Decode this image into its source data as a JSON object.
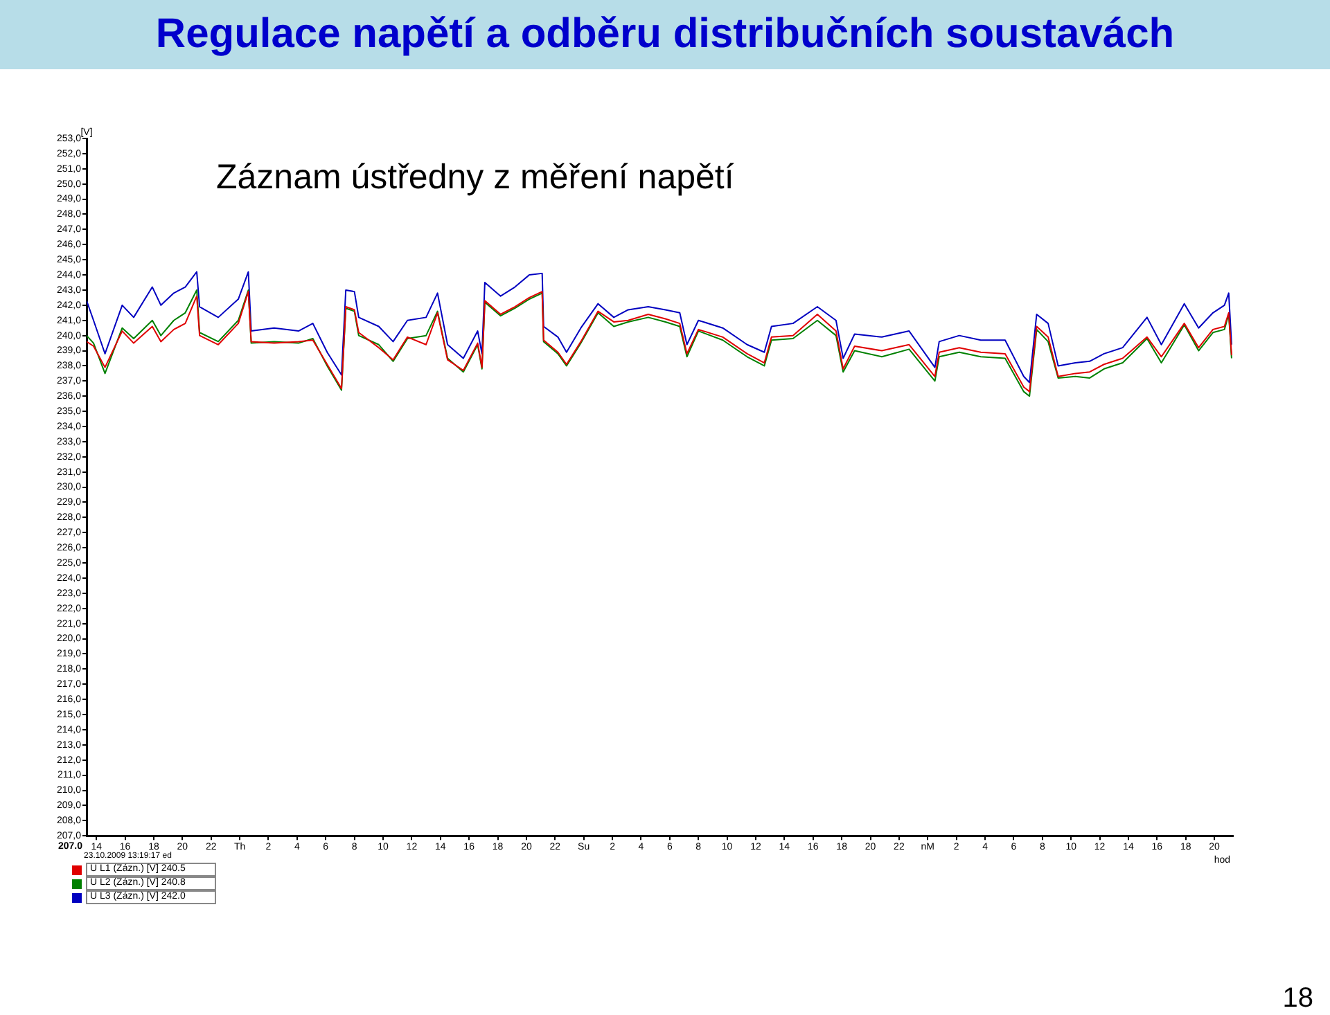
{
  "chart_data": {
    "type": "line",
    "title": "Regulace napětí a odběru distribučních soustavách",
    "subtitle": "Záznam ústředny z měření napětí",
    "xlabel": "hod",
    "ylabel": "[V]",
    "annotations": [
      "207.0",
      "23.10.2009 13:19:17 ed",
      "18"
    ],
    "x": [
      "2009-10-23T13:19",
      "2009-10-23T13:48",
      "2009-10-23T14:36",
      "2009-10-23T15:48",
      "2009-10-23T16:36",
      "2009-10-23T17:54",
      "2009-10-23T18:30",
      "2009-10-23T19:24",
      "2009-10-23T20:12",
      "2009-10-23T21:00",
      "2009-10-23T21:12",
      "2009-10-23T22:30",
      "2009-10-23T23:54",
      "2009-10-24T00:36",
      "2009-10-24T00:48",
      "2009-10-24T02:24",
      "2009-10-24T04:06",
      "2009-10-24T05:06",
      "2009-10-24T06:06",
      "2009-10-24T07:06",
      "2009-10-24T07:24",
      "2009-10-24T08:00",
      "2009-10-24T08:18",
      "2009-10-24T09:42",
      "2009-10-24T10:42",
      "2009-10-24T11:42",
      "2009-10-24T13:00",
      "2009-10-24T13:48",
      "2009-10-24T14:30",
      "2009-10-24T15:36",
      "2009-10-24T16:36",
      "2009-10-24T16:54",
      "2009-10-24T17:06",
      "2009-10-24T18:12",
      "2009-10-24T19:12",
      "2009-10-24T20:12",
      "2009-10-24T21:06",
      "2009-10-24T21:12",
      "2009-10-24T22:12",
      "2009-10-24T22:48",
      "2009-10-24T23:48",
      "2009-10-25T01:00",
      "2009-10-25T02:06",
      "2009-10-25T03:06",
      "2009-10-25T04:30",
      "2009-10-25T05:42",
      "2009-10-25T06:42",
      "2009-10-25T07:12",
      "2009-10-25T08:00",
      "2009-10-25T09:42",
      "2009-10-25T11:24",
      "2009-10-25T12:36",
      "2009-10-25T13:06",
      "2009-10-25T14:36",
      "2009-10-25T16:18",
      "2009-10-25T17:36",
      "2009-10-25T18:06",
      "2009-10-25T18:54",
      "2009-10-25T20:48",
      "2009-10-25T22:42",
      "2009-10-26T00:30",
      "2009-10-26T00:48",
      "2009-10-26T02:12",
      "2009-10-26T03:42",
      "2009-10-26T05:24",
      "2009-10-26T06:42",
      "2009-10-26T07:06",
      "2009-10-26T07:36",
      "2009-10-26T08:24",
      "2009-10-26T09:06",
      "2009-10-26T10:18",
      "2009-10-26T11:18",
      "2009-10-26T12:18",
      "2009-10-26T13:36",
      "2009-10-26T15:18",
      "2009-10-26T16:18",
      "2009-10-26T17:54",
      "2009-10-26T18:54",
      "2009-10-26T19:54",
      "2009-10-26T20:42",
      "2009-10-26T21:00",
      "2009-10-26T21:12"
    ],
    "series": [
      {
        "name": "U L1 (Zázn.) [V] 240.5",
        "color": "#e00000",
        "values": [
          239.6,
          239.3,
          237.9,
          240.3,
          239.5,
          240.6,
          239.6,
          240.4,
          240.8,
          242.6,
          240.0,
          239.4,
          240.8,
          242.9,
          239.6,
          239.5,
          239.6,
          239.7,
          238.1,
          236.5,
          241.9,
          241.7,
          240.2,
          239.2,
          238.4,
          239.9,
          239.4,
          241.5,
          238.4,
          237.7,
          239.5,
          237.9,
          242.3,
          241.4,
          241.9,
          242.5,
          242.9,
          239.7,
          238.9,
          238.1,
          239.6,
          241.6,
          240.9,
          241.0,
          241.4,
          241.1,
          240.8,
          238.8,
          240.4,
          239.9,
          238.8,
          238.2,
          239.9,
          240.0,
          241.4,
          240.3,
          237.8,
          239.3,
          239.0,
          239.4,
          237.3,
          238.9,
          239.2,
          238.9,
          238.8,
          236.6,
          236.3,
          240.6,
          239.9,
          237.3,
          237.5,
          237.6,
          238.1,
          238.5,
          239.9,
          238.6,
          240.8,
          239.2,
          240.4,
          240.6,
          241.5,
          238.7
        ]
      },
      {
        "name": "U L2 (Zázn.) [V] 240.8",
        "color": "#008000",
        "values": [
          240.0,
          239.5,
          237.5,
          240.5,
          239.8,
          241.0,
          240.0,
          241.0,
          241.5,
          243.0,
          240.2,
          239.6,
          241.0,
          243.0,
          239.5,
          239.6,
          239.5,
          239.8,
          238.0,
          236.4,
          241.8,
          241.6,
          240.0,
          239.4,
          238.3,
          239.8,
          240.0,
          241.6,
          238.5,
          237.6,
          239.4,
          237.8,
          242.2,
          241.3,
          241.8,
          242.4,
          242.8,
          239.6,
          238.8,
          238.0,
          239.5,
          241.5,
          240.6,
          240.9,
          241.2,
          240.9,
          240.6,
          238.6,
          240.3,
          239.7,
          238.6,
          238.0,
          239.7,
          239.8,
          241.0,
          240.0,
          237.6,
          239.0,
          238.6,
          239.1,
          237.0,
          238.6,
          238.9,
          238.6,
          238.5,
          236.3,
          236.0,
          240.4,
          239.6,
          237.2,
          237.3,
          237.2,
          237.8,
          238.2,
          239.8,
          238.2,
          240.7,
          239.0,
          240.2,
          240.4,
          241.4,
          238.5
        ]
      },
      {
        "name": "U L3 (Zázn.) [V] 242.0",
        "color": "#0000c0",
        "values": [
          242.3,
          241.0,
          238.8,
          242.0,
          241.2,
          243.2,
          242.0,
          242.8,
          243.2,
          244.2,
          241.9,
          241.2,
          242.4,
          244.2,
          240.3,
          240.5,
          240.3,
          240.8,
          238.9,
          237.4,
          243.0,
          242.9,
          241.2,
          240.6,
          239.6,
          241.0,
          241.2,
          242.8,
          239.4,
          238.5,
          240.3,
          238.8,
          243.5,
          242.6,
          243.2,
          244.0,
          244.1,
          240.6,
          239.9,
          238.9,
          240.5,
          242.1,
          241.2,
          241.7,
          241.9,
          241.7,
          241.5,
          239.4,
          241.0,
          240.5,
          239.4,
          238.9,
          240.6,
          240.8,
          241.9,
          241.0,
          238.5,
          240.1,
          239.9,
          240.3,
          237.9,
          239.6,
          240.0,
          239.7,
          239.7,
          237.3,
          236.9,
          241.4,
          240.8,
          238.0,
          238.2,
          238.3,
          238.8,
          239.2,
          241.2,
          239.4,
          242.1,
          240.5,
          241.5,
          242.0,
          242.8,
          239.4
        ]
      }
    ],
    "xlim": [
      "2009-10-23T13:19",
      "2009-10-26T21:18"
    ],
    "xticks": [
      {
        "value": "2009-10-23T14:00",
        "label": "14"
      },
      {
        "value": "2009-10-23T16:00",
        "label": "16"
      },
      {
        "value": "2009-10-23T18:00",
        "label": "18"
      },
      {
        "value": "2009-10-23T20:00",
        "label": "20"
      },
      {
        "value": "2009-10-23T22:00",
        "label": "22"
      },
      {
        "value": "2009-10-24T00:00",
        "label": "Th"
      },
      {
        "value": "2009-10-24T02:00",
        "label": "2"
      },
      {
        "value": "2009-10-24T04:00",
        "label": "4"
      },
      {
        "value": "2009-10-24T06:00",
        "label": "6"
      },
      {
        "value": "2009-10-24T08:00",
        "label": "8"
      },
      {
        "value": "2009-10-24T10:00",
        "label": "10"
      },
      {
        "value": "2009-10-24T12:00",
        "label": "12"
      },
      {
        "value": "2009-10-24T14:00",
        "label": "14"
      },
      {
        "value": "2009-10-24T16:00",
        "label": "16"
      },
      {
        "value": "2009-10-24T18:00",
        "label": "18"
      },
      {
        "value": "2009-10-24T20:00",
        "label": "20"
      },
      {
        "value": "2009-10-24T22:00",
        "label": "22"
      },
      {
        "value": "2009-10-25T00:00",
        "label": "Su"
      },
      {
        "value": "2009-10-25T02:00",
        "label": "2"
      },
      {
        "value": "2009-10-25T04:00",
        "label": "4"
      },
      {
        "value": "2009-10-25T06:00",
        "label": "6"
      },
      {
        "value": "2009-10-25T08:00",
        "label": "8"
      },
      {
        "value": "2009-10-25T10:00",
        "label": "10"
      },
      {
        "value": "2009-10-25T12:00",
        "label": "12"
      },
      {
        "value": "2009-10-25T14:00",
        "label": "14"
      },
      {
        "value": "2009-10-25T16:00",
        "label": "16"
      },
      {
        "value": "2009-10-25T18:00",
        "label": "18"
      },
      {
        "value": "2009-10-25T20:00",
        "label": "20"
      },
      {
        "value": "2009-10-25T22:00",
        "label": "22"
      },
      {
        "value": "2009-10-26T00:00",
        "label": "nM"
      },
      {
        "value": "2009-10-26T02:00",
        "label": "2"
      },
      {
        "value": "2009-10-26T04:00",
        "label": "4"
      },
      {
        "value": "2009-10-26T06:00",
        "label": "6"
      },
      {
        "value": "2009-10-26T08:00",
        "label": "8"
      },
      {
        "value": "2009-10-26T10:00",
        "label": "10"
      },
      {
        "value": "2009-10-26T12:00",
        "label": "12"
      },
      {
        "value": "2009-10-26T14:00",
        "label": "14"
      },
      {
        "value": "2009-10-26T16:00",
        "label": "16"
      },
      {
        "value": "2009-10-26T18:00",
        "label": "18"
      },
      {
        "value": "2009-10-26T20:00",
        "label": "20"
      }
    ],
    "ylim": [
      207,
      253
    ],
    "yticks": [
      {
        "value": 207,
        "label": "207,0"
      },
      {
        "value": 208,
        "label": "208,0"
      },
      {
        "value": 209,
        "label": "209,0"
      },
      {
        "value": 210,
        "label": "210,0"
      },
      {
        "value": 211,
        "label": "211,0"
      },
      {
        "value": 212,
        "label": "212,0"
      },
      {
        "value": 213,
        "label": "213,0"
      },
      {
        "value": 214,
        "label": "214,0"
      },
      {
        "value": 215,
        "label": "215,0"
      },
      {
        "value": 216,
        "label": "216,0"
      },
      {
        "value": 217,
        "label": "217,0"
      },
      {
        "value": 218,
        "label": "218,0"
      },
      {
        "value": 219,
        "label": "219,0"
      },
      {
        "value": 220,
        "label": "220,0"
      },
      {
        "value": 221,
        "label": "221,0"
      },
      {
        "value": 222,
        "label": "222,0"
      },
      {
        "value": 223,
        "label": "223,0"
      },
      {
        "value": 224,
        "label": "224,0"
      },
      {
        "value": 225,
        "label": "225,0"
      },
      {
        "value": 226,
        "label": "226,0"
      },
      {
        "value": 227,
        "label": "227,0"
      },
      {
        "value": 228,
        "label": "228,0"
      },
      {
        "value": 229,
        "label": "229,0"
      },
      {
        "value": 230,
        "label": "230,0"
      },
      {
        "value": 231,
        "label": "231,0"
      },
      {
        "value": 232,
        "label": "232,0"
      },
      {
        "value": 233,
        "label": "233,0"
      },
      {
        "value": 234,
        "label": "234,0"
      },
      {
        "value": 235,
        "label": "235,0"
      },
      {
        "value": 236,
        "label": "236,0"
      },
      {
        "value": 237,
        "label": "237,0"
      },
      {
        "value": 238,
        "label": "238,0"
      },
      {
        "value": 239,
        "label": "239,0"
      },
      {
        "value": 240,
        "label": "240,0"
      },
      {
        "value": 241,
        "label": "241,0"
      },
      {
        "value": 242,
        "label": "242,0"
      },
      {
        "value": 243,
        "label": "243,0"
      },
      {
        "value": 244,
        "label": "244,0"
      },
      {
        "value": 245,
        "label": "245,0"
      },
      {
        "value": 246,
        "label": "246,0"
      },
      {
        "value": 247,
        "label": "247,0"
      },
      {
        "value": 248,
        "label": "248,0"
      },
      {
        "value": 249,
        "label": "249,0"
      },
      {
        "value": 250,
        "label": "250,0"
      },
      {
        "value": 251,
        "label": "251,0"
      },
      {
        "value": 252,
        "label": "252,0"
      },
      {
        "value": 253,
        "label": "253,0"
      }
    ],
    "grid": false,
    "legend": "bottom left",
    "marker": "none",
    "line_style": "solid"
  }
}
